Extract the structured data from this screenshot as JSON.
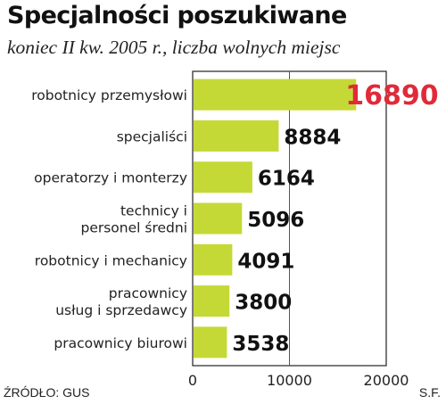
{
  "header": {
    "title": "Specjalności poszukiwane",
    "subtitle": "koniec II kw. 2005 r., liczba wolnych miejsc"
  },
  "footer": {
    "source": "ŹRÓDŁO: GUS",
    "author": "S.F."
  },
  "chart_data": {
    "type": "bar",
    "orientation": "horizontal",
    "categories": [
      [
        "robotnicy przemysłowi"
      ],
      [
        "specjaliści"
      ],
      [
        "operatorzy i monterzy"
      ],
      [
        "technicy i",
        "personel średni"
      ],
      [
        "robotnicy i mechanicy"
      ],
      [
        "pracownicy",
        "usług i sprzedawcy"
      ],
      [
        "pracownicy biurowi"
      ]
    ],
    "values": [
      16890,
      8884,
      6164,
      5096,
      4091,
      3800,
      3538
    ],
    "value_labels": [
      "16890",
      "8884",
      "6164",
      "5096",
      "4091",
      "3800",
      "3538"
    ],
    "x_ticks": [
      0,
      10000,
      20000
    ],
    "x_tick_labels": [
      "0",
      "10000",
      "20000"
    ],
    "xlim": [
      0,
      20000
    ],
    "grid": "vertical line at 10000",
    "bar_color": "#c5d936",
    "highlight_color": "#e02a3a",
    "label_color": "#111111"
  }
}
